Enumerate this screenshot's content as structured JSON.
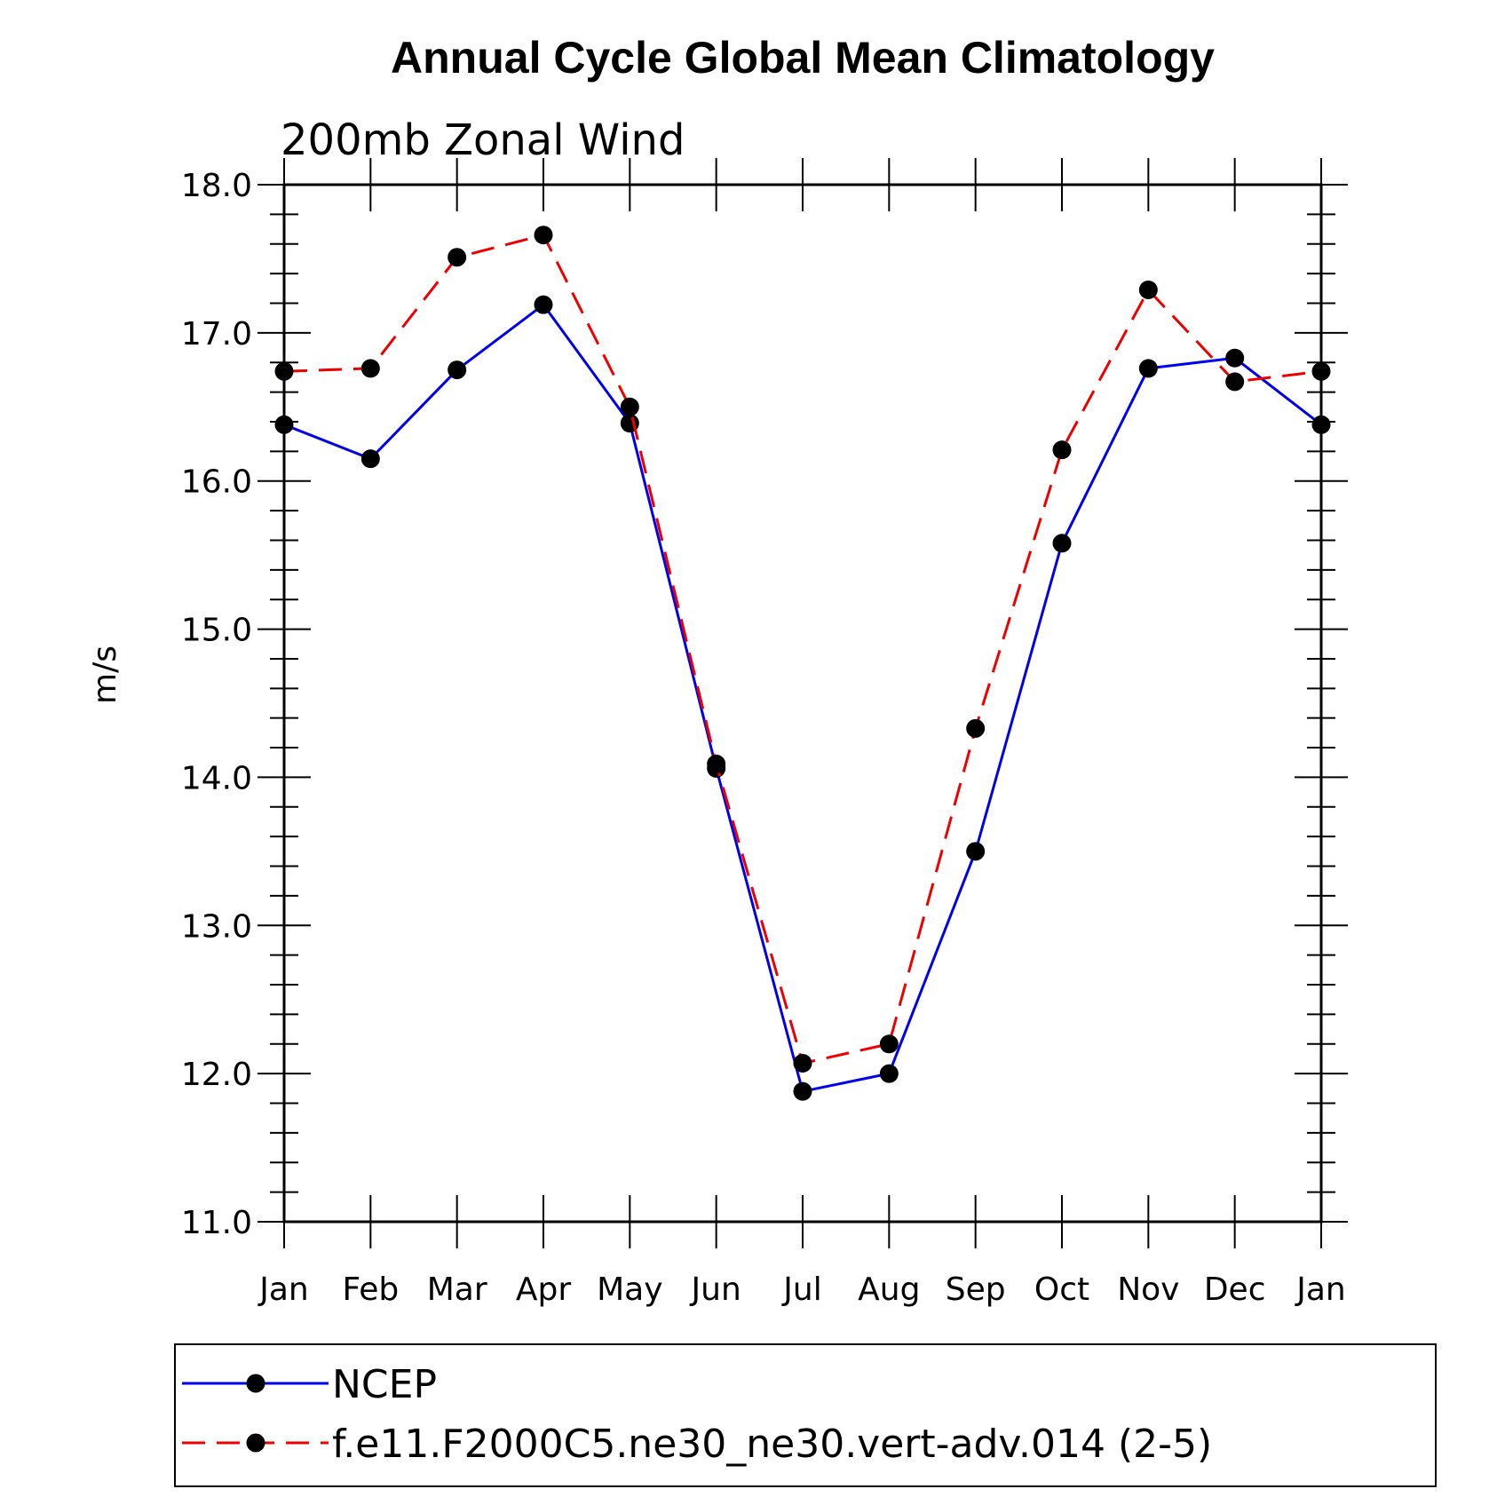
{
  "chart_data": {
    "type": "line",
    "title": "Annual Cycle Global Mean Climatology",
    "subtitle": "200mb Zonal Wind",
    "ylabel": "m/s",
    "xlabel": "",
    "ylim": [
      11.0,
      18.0
    ],
    "y_ticks": [
      "11.0",
      "12.0",
      "13.0",
      "14.0",
      "15.0",
      "16.0",
      "17.0",
      "18.0"
    ],
    "y_minor_step": 0.2,
    "categories": [
      "Jan",
      "Feb",
      "Mar",
      "Apr",
      "May",
      "Jun",
      "Jul",
      "Aug",
      "Sep",
      "Oct",
      "Nov",
      "Dec",
      "Jan"
    ],
    "grid": false,
    "legend_position": "bottom",
    "series": [
      {
        "name": "NCEP",
        "color": "#0000ee",
        "dashed": false,
        "values": [
          16.38,
          16.15,
          16.75,
          17.19,
          16.39,
          14.06,
          11.88,
          12.0,
          13.5,
          15.58,
          16.76,
          16.83,
          16.38
        ]
      },
      {
        "name": "f.e11.F2000C5.ne30_ne30.vert-adv.014 (2-5)",
        "color": "#ee0000",
        "dashed": true,
        "values": [
          16.74,
          16.76,
          17.51,
          17.66,
          16.5,
          14.09,
          12.07,
          12.2,
          14.33,
          16.21,
          17.29,
          16.67,
          16.74
        ]
      }
    ]
  }
}
